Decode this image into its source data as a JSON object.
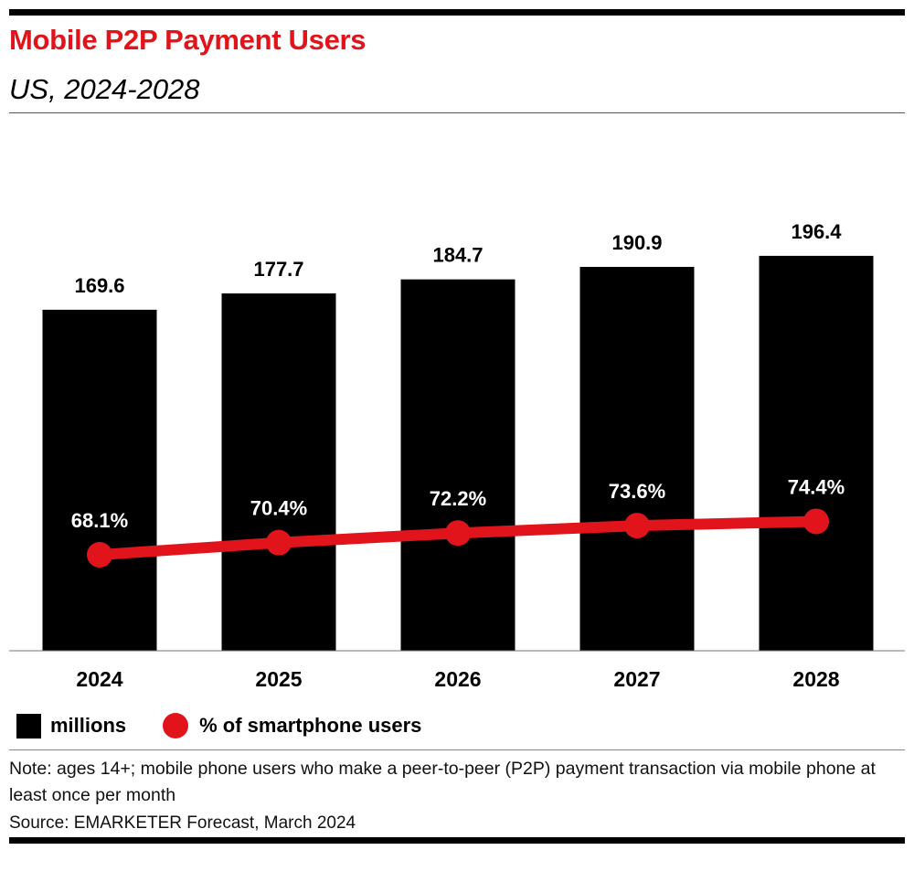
{
  "header": {
    "title": "Mobile P2P Payment Users",
    "subtitle": "US, 2024-2028"
  },
  "chart_data": {
    "type": "bar",
    "title": "Mobile P2P Payment Users",
    "subtitle": "US, 2024-2028",
    "categories": [
      "2024",
      "2025",
      "2026",
      "2027",
      "2028"
    ],
    "series": [
      {
        "name": "millions",
        "kind": "bar",
        "values": [
          169.6,
          177.7,
          184.7,
          190.9,
          196.4
        ],
        "labels": [
          "169.6",
          "177.7",
          "184.7",
          "190.9",
          "196.4"
        ],
        "color": "#000000"
      },
      {
        "name": "% of smartphone users",
        "kind": "line",
        "values": [
          68.1,
          70.4,
          72.2,
          73.6,
          74.4
        ],
        "labels": [
          "68.1%",
          "70.4%",
          "72.2%",
          "73.6%",
          "74.4%"
        ],
        "color": "#e1141c"
      }
    ],
    "ylim_bars": [
      0,
      200
    ],
    "ylim_line": [
      50,
      100
    ],
    "xlabel": "",
    "ylabel": "",
    "grid": false,
    "legend": "bottom-left"
  },
  "legend": {
    "bar_label": "millions",
    "line_label": "% of smartphone users"
  },
  "footer": {
    "note": "Note: ages 14+; mobile phone users who make a peer-to-peer (P2P) payment transaction via mobile phone at least once per month",
    "source": "Source: EMARKETER Forecast, March 2024"
  }
}
